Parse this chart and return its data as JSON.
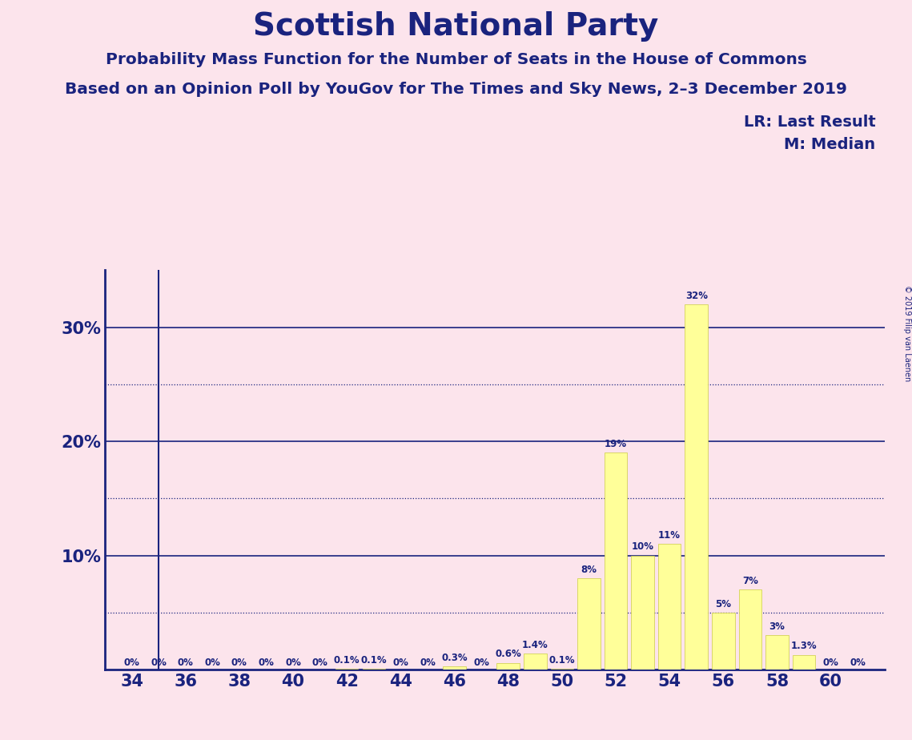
{
  "title": "Scottish National Party",
  "subtitle1": "Probability Mass Function for the Number of Seats in the House of Commons",
  "subtitle2": "Based on an Opinion Poll by YouGov for The Times and Sky News, 2–3 December 2019",
  "copyright": "© 2019 Filip van Laenen",
  "legend_lr": "LR: Last Result",
  "legend_m": "M: Median",
  "background_color": "#fce4ec",
  "bar_color": "#ffff99",
  "bar_edge_color": "#cccc44",
  "text_color": "#1a237e",
  "xlim": [
    33,
    62
  ],
  "ylim": [
    0,
    35
  ],
  "xticks": [
    34,
    36,
    38,
    40,
    42,
    44,
    46,
    48,
    50,
    52,
    54,
    56,
    58,
    60
  ],
  "yticks": [
    10,
    20,
    30
  ],
  "ytick_labels": [
    "10%",
    "20%",
    "30%"
  ],
  "dotted_yticks": [
    5,
    15,
    25
  ],
  "seats": [
    34,
    35,
    36,
    37,
    38,
    39,
    40,
    41,
    42,
    43,
    44,
    45,
    46,
    47,
    48,
    49,
    50,
    51,
    52,
    53,
    54,
    55,
    56,
    57,
    58,
    59,
    60,
    61
  ],
  "probabilities": [
    0.0,
    0.0,
    0.0,
    0.0,
    0.0,
    0.0,
    0.0,
    0.0,
    0.1,
    0.1,
    0.0,
    0.0,
    0.3,
    0.0,
    0.6,
    1.4,
    0.1,
    8.0,
    19.0,
    10.0,
    11.0,
    32.0,
    5.0,
    7.0,
    3.0,
    1.3,
    0.0,
    0.0
  ],
  "labels": [
    "0%",
    "0%",
    "0%",
    "0%",
    "0%",
    "0%",
    "0%",
    "0%",
    "0.1%",
    "0.1%",
    "0%",
    "0%",
    "0.3%",
    "0%",
    "0.6%",
    "1.4%",
    "0.1%",
    "8%",
    "19%",
    "10%",
    "11%",
    "32%",
    "5%",
    "7%",
    "3%",
    "1.3%",
    "0%",
    "0%"
  ],
  "last_result_seat": 35,
  "median_seat": 55,
  "lr_label": "LR",
  "m_label": "M"
}
